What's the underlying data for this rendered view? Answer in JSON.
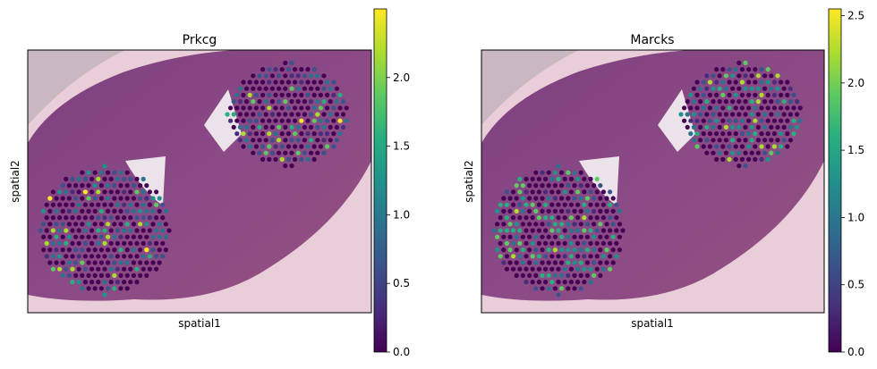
{
  "chart_data": [
    {
      "type": "scatter",
      "title": "Prkcg",
      "xlabel": "spatial1",
      "ylabel": "spatial2",
      "colorbar": {
        "ticks": [
          "0.0",
          "0.5",
          "1.0",
          "1.5",
          "2.0"
        ],
        "range": [
          0,
          2.5
        ]
      },
      "series": [
        {
          "region": "upper-right",
          "mean_value": 0.35
        },
        {
          "region": "lower-left",
          "mean_value": 0.45
        }
      ]
    },
    {
      "type": "scatter",
      "title": "Marcks",
      "xlabel": "spatial1",
      "ylabel": "spatial2",
      "colorbar": {
        "ticks": [
          "0.0",
          "0.5",
          "1.0",
          "1.5",
          "2.0",
          "2.5"
        ],
        "range": [
          0,
          2.55
        ]
      },
      "series": [
        {
          "region": "upper-right",
          "mean_value": 0.6
        },
        {
          "region": "lower-left",
          "mean_value": 0.85
        }
      ]
    }
  ]
}
